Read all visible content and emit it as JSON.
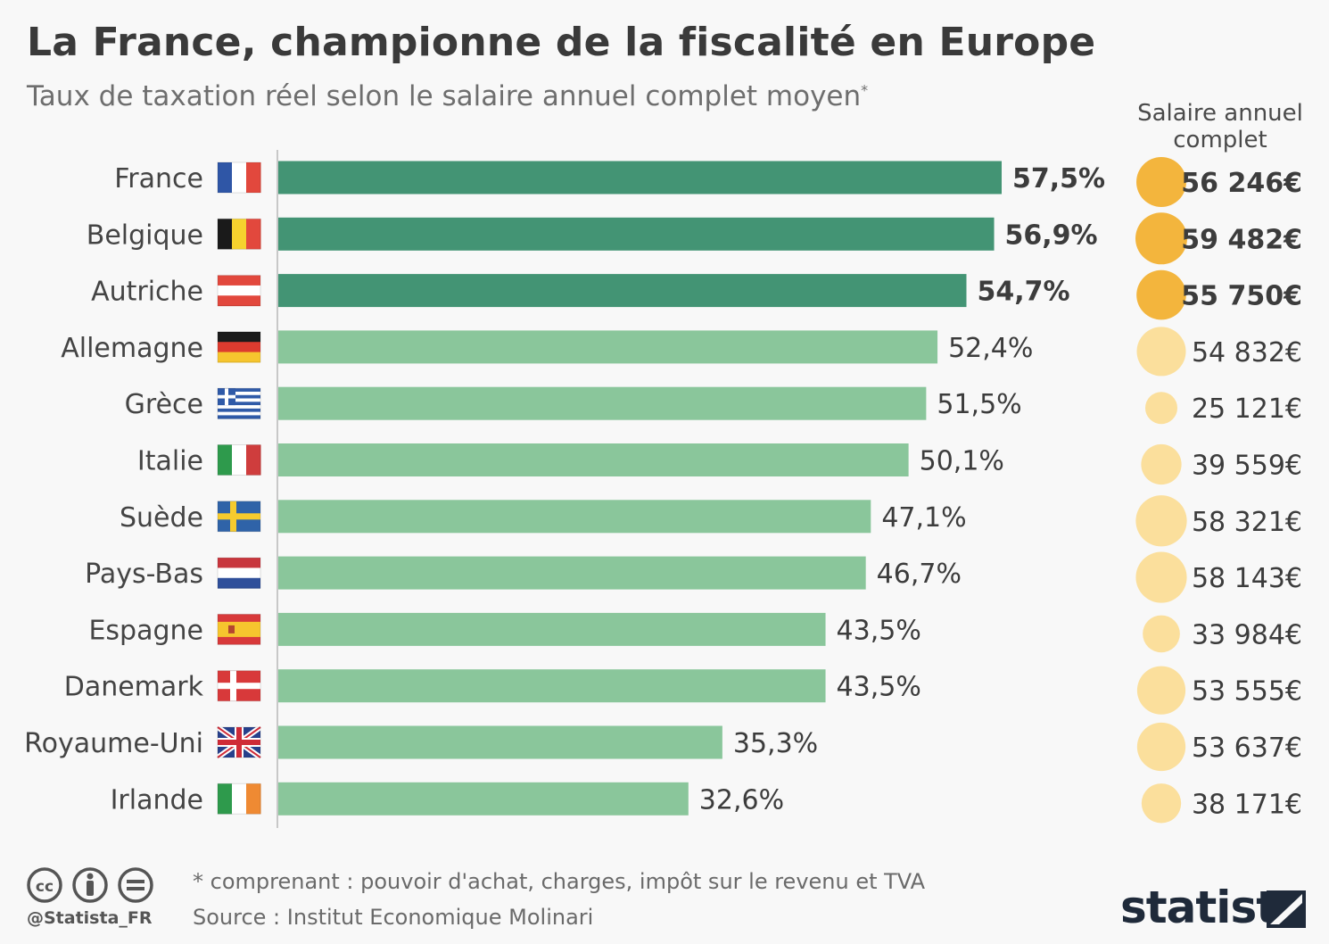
{
  "header": {
    "title": "La France, championne de la fiscalité en Europe",
    "subtitle": "Taux de taxation réel selon le salaire annuel complet moyen",
    "subtitle_mark": "*"
  },
  "salary_header": "Salaire annuel complet",
  "chart_data": {
    "type": "bar",
    "orientation": "horizontal",
    "title": "La France, championne de la fiscalité en Europe",
    "subtitle": "Taux de taxation réel selon le salaire annuel complet moyen*",
    "categories": [
      "France",
      "Belgique",
      "Autriche",
      "Allemagne",
      "Grèce",
      "Italie",
      "Suède",
      "Pays-Bas",
      "Espagne",
      "Danemark",
      "Royaume-Uni",
      "Irlande"
    ],
    "values": [
      57.5,
      56.9,
      54.7,
      52.4,
      51.5,
      50.1,
      47.1,
      46.7,
      43.5,
      43.5,
      35.3,
      32.6
    ],
    "value_labels": [
      "57,5%",
      "56,9%",
      "54,7%",
      "52,4%",
      "51,5%",
      "50,1%",
      "47,1%",
      "46,7%",
      "43,5%",
      "43,5%",
      "35,3%",
      "32,6%"
    ],
    "highlight_top": 3,
    "colors": {
      "highlight": "#439474",
      "normal": "#8ac69b",
      "bubble_highlight": "#f3b53d",
      "bubble_normal": "#fbdf9c"
    },
    "salary_series": {
      "name": "Salaire annuel complet",
      "values": [
        56246,
        59482,
        55750,
        54832,
        25121,
        39559,
        58321,
        58143,
        33984,
        53555,
        53637,
        38171
      ],
      "labels": [
        "56 246€",
        "59 482€",
        "55 750€",
        "54 832€",
        "25 121€",
        "39 559€",
        "58 321€",
        "58 143€",
        "33 984€",
        "53 555€",
        "53 637€",
        "38 171€"
      ]
    },
    "flags": [
      "flag-france-icon",
      "flag-belgium-icon",
      "flag-austria-icon",
      "flag-germany-icon",
      "flag-greece-icon",
      "flag-italy-icon",
      "flag-sweden-icon",
      "flag-netherlands-icon",
      "flag-spain-icon",
      "flag-denmark-icon",
      "flag-uk-icon",
      "flag-ireland-icon"
    ]
  },
  "footer": {
    "footnote": "* comprenant : pouvoir d'achat, charges, impôt sur le revenu et TVA",
    "source": "Source : Institut Economique Molinari",
    "handle": "@Statista_FR",
    "brand": "statista",
    "license_icons": [
      "cc-icon",
      "by-icon",
      "nd-icon"
    ]
  }
}
